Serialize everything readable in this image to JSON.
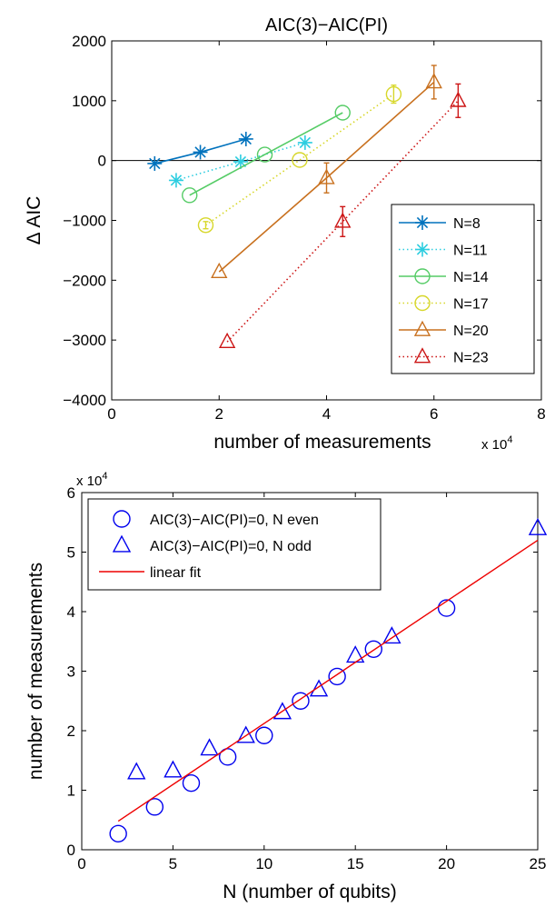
{
  "chart_data": [
    {
      "type": "line",
      "title": "AIC(3)−AIC(PI)",
      "xlabel": "number of measurements",
      "ylabel": "Δ AIC",
      "x_exponent": "x 10",
      "x_exponent_power": "4",
      "x_scale": 10000,
      "xlim": [
        0,
        80000
      ],
      "ylim": [
        -4000,
        2000
      ],
      "xticks": [
        0,
        20000,
        40000,
        60000,
        80000
      ],
      "xtick_labels": [
        "0",
        "2",
        "4",
        "6",
        "8"
      ],
      "yticks": [
        -4000,
        -3000,
        -2000,
        -1000,
        0,
        1000,
        2000
      ],
      "ytick_labels": [
        "−4000",
        "−3000",
        "−2000",
        "−1000",
        "0",
        "1000",
        "2000"
      ],
      "zero_line": true,
      "grid": false,
      "legend_position": "bottom-right",
      "series": [
        {
          "name": "N=8",
          "color": "#0072bd",
          "marker": "asterisk",
          "line": "solid",
          "points": [
            {
              "x": 8000,
              "y": -50,
              "err": 0
            },
            {
              "x": 16500,
              "y": 140,
              "err": 0
            },
            {
              "x": 25000,
              "y": 360,
              "err": 0
            }
          ]
        },
        {
          "name": "N=11",
          "color": "#2ccde0",
          "marker": "asterisk",
          "line": "dotted",
          "points": [
            {
              "x": 12000,
              "y": -330,
              "err": 0
            },
            {
              "x": 24000,
              "y": -20,
              "err": 0
            },
            {
              "x": 36000,
              "y": 300,
              "err": 0
            }
          ]
        },
        {
          "name": "N=14",
          "color": "#55cc66",
          "marker": "circle",
          "line": "solid",
          "points": [
            {
              "x": 14500,
              "y": -580,
              "err": 0
            },
            {
              "x": 28500,
              "y": 100,
              "err": 0
            },
            {
              "x": 43000,
              "y": 800,
              "err": 0
            }
          ]
        },
        {
          "name": "N=17",
          "color": "#d7d72a",
          "marker": "circle",
          "line": "dotted",
          "points": [
            {
              "x": 17500,
              "y": -1080,
              "err": 60
            },
            {
              "x": 35000,
              "y": 10,
              "err": 0
            },
            {
              "x": 52500,
              "y": 1110,
              "err": 150
            }
          ]
        },
        {
          "name": "N=20",
          "color": "#c8701e",
          "marker": "triangle",
          "line": "solid",
          "points": [
            {
              "x": 20000,
              "y": -1860,
              "err": 0
            },
            {
              "x": 40000,
              "y": -290,
              "err": 250
            },
            {
              "x": 60000,
              "y": 1310,
              "err": 280
            }
          ]
        },
        {
          "name": "N=23",
          "color": "#cc1414",
          "marker": "triangle",
          "line": "dotted",
          "points": [
            {
              "x": 21500,
              "y": -3030,
              "err": 0
            },
            {
              "x": 43000,
              "y": -1020,
              "err": 250
            },
            {
              "x": 64500,
              "y": 1000,
              "err": 280
            }
          ]
        }
      ]
    },
    {
      "type": "scatter",
      "title": "",
      "xlabel": "N (number of qubits)",
      "ylabel": "number of measurements",
      "y_exponent": "x 10",
      "y_exponent_power": "4",
      "y_scale": 10000,
      "xlim": [
        0,
        25
      ],
      "ylim": [
        0,
        60000
      ],
      "xticks": [
        0,
        5,
        10,
        15,
        20,
        25
      ],
      "xtick_labels": [
        "0",
        "5",
        "10",
        "15",
        "20",
        "25"
      ],
      "yticks": [
        0,
        10000,
        20000,
        30000,
        40000,
        50000,
        60000
      ],
      "ytick_labels": [
        "0",
        "1",
        "2",
        "3",
        "4",
        "5",
        "6"
      ],
      "grid": false,
      "legend_position": "top-left",
      "series": [
        {
          "name": "AIC(3)−AIC(PI)=0, N even",
          "color": "#0000ee",
          "marker": "circle",
          "x": [
            2,
            4,
            6,
            8,
            10,
            12,
            14,
            16,
            20
          ],
          "y": [
            2700,
            7200,
            11200,
            15600,
            19200,
            25000,
            29100,
            33700,
            40600
          ]
        },
        {
          "name": "AIC(3)−AIC(PI)=0, N odd",
          "color": "#0000ee",
          "marker": "triangle",
          "x": [
            3,
            5,
            7,
            9,
            11,
            13,
            15,
            17,
            25
          ],
          "y": [
            13000,
            13300,
            17000,
            19100,
            23100,
            26900,
            32600,
            35800,
            54000
          ]
        },
        {
          "name": "linear fit",
          "color": "#ee0000",
          "marker": "none",
          "line": "solid",
          "x": [
            2,
            25
          ],
          "y": [
            4800,
            52000
          ]
        }
      ]
    }
  ]
}
